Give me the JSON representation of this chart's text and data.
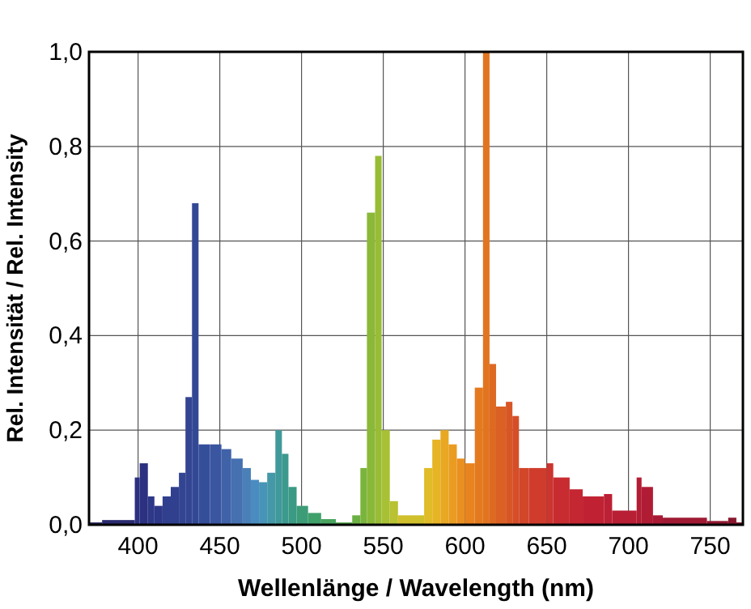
{
  "chart_data": {
    "type": "histogram",
    "xlabel": "Wellenlänge / Wavelength (nm)",
    "ylabel": "Rel. Intensität / Rel. Intensity",
    "bins": [
      370,
      378,
      398,
      401,
      406,
      410,
      415,
      420,
      425,
      429,
      433,
      437,
      444,
      451,
      457,
      464,
      469,
      474,
      479,
      484,
      488,
      492,
      497,
      504,
      512,
      521,
      531,
      536,
      540,
      545,
      549,
      554,
      559,
      575,
      580,
      585,
      590,
      595,
      600,
      606,
      611,
      615,
      619,
      625,
      629,
      633,
      639,
      650,
      654,
      664,
      672,
      685,
      690,
      705,
      708,
      715,
      721,
      748,
      761,
      766,
      770
    ],
    "values": [
      0.005,
      0.01,
      0.1,
      0.13,
      0.06,
      0.04,
      0.06,
      0.08,
      0.11,
      0.27,
      0.68,
      0.17,
      0.17,
      0.16,
      0.14,
      0.12,
      0.095,
      0.09,
      0.11,
      0.2,
      0.15,
      0.08,
      0.04,
      0.025,
      0.012,
      0.005,
      0.02,
      0.12,
      0.66,
      0.78,
      0.2,
      0.05,
      0.02,
      0.12,
      0.18,
      0.2,
      0.17,
      0.14,
      0.13,
      0.29,
      1.0,
      0.34,
      0.25,
      0.26,
      0.23,
      0.12,
      0.12,
      0.13,
      0.1,
      0.075,
      0.06,
      0.065,
      0.03,
      0.1,
      0.08,
      0.02,
      0.015,
      0.008,
      0.015,
      0.005
    ],
    "colors": [
      "#2a2a60",
      "#2a2a70",
      "#2b3080",
      "#2b3080",
      "#2e3888",
      "#2e3888",
      "#30408e",
      "#30408e",
      "#334592",
      "#334592",
      "#334895",
      "#354e9a",
      "#3a56a0",
      "#3f62a8",
      "#4670b0",
      "#4a80b8",
      "#4a8cc0",
      "#4894b8",
      "#4598a8",
      "#40999a",
      "#3c998e",
      "#3a9a84",
      "#3c9c78",
      "#40a06a",
      "#48a45e",
      "#58aa50",
      "#6cb044",
      "#7ab43c",
      "#8ab838",
      "#98bc36",
      "#a8c034",
      "#b8c232",
      "#d0c02c",
      "#e0bc28",
      "#e6b424",
      "#e8a822",
      "#ea9c20",
      "#ea9020",
      "#e88420",
      "#e47a20",
      "#e27420",
      "#de6a22",
      "#da6024",
      "#d85626",
      "#d54e28",
      "#d2462a",
      "#d03c2c",
      "#cc342e",
      "#c82c30",
      "#c42632",
      "#c02234",
      "#bc2034",
      "#b81e34",
      "#b41c34",
      "#b01c34",
      "#aa1a34",
      "#a01a34",
      "#901830",
      "#88182e",
      "#80182c"
    ],
    "xlim": [
      370,
      770
    ],
    "xticks": [
      400,
      450,
      500,
      550,
      600,
      650,
      700,
      750
    ],
    "ylim": [
      0,
      1
    ],
    "yticks": [
      {
        "value": 0,
        "label": "0,0"
      },
      {
        "value": 0.2,
        "label": "0,2"
      },
      {
        "value": 0.4,
        "label": "0,4"
      },
      {
        "value": 0.6,
        "label": "0,6"
      },
      {
        "value": 0.8,
        "label": "0,8"
      },
      {
        "value": 1,
        "label": "1,0"
      }
    ],
    "grid": true
  }
}
